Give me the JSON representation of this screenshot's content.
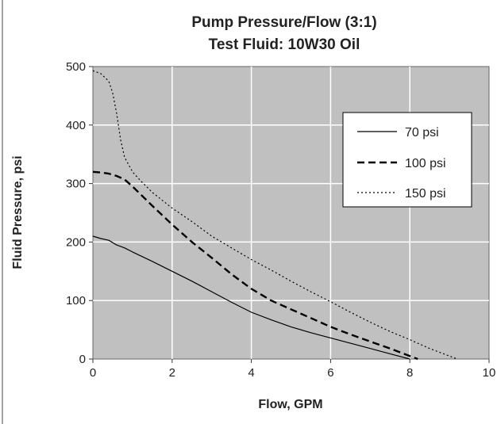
{
  "chart_data": {
    "type": "line",
    "title": [
      "Pump Pressure/Flow (3:1)",
      "Test Fluid: 10W30 Oil"
    ],
    "xlabel": "Flow, GPM",
    "ylabel": "Fluid Pressure, psi",
    "xlim": [
      0,
      10
    ],
    "ylim": [
      0,
      500
    ],
    "xticks": [
      0,
      2,
      4,
      6,
      8,
      10
    ],
    "yticks": [
      0,
      100,
      200,
      300,
      400,
      500
    ],
    "grid": true,
    "legend_position": "top-right",
    "colors": {
      "plot_background": "#c0c0c0",
      "grid": "#ffffff",
      "line": "#000000",
      "legend_bg": "#ffffff"
    },
    "series": [
      {
        "name": "70 psi",
        "style": "solid",
        "x": [
          0,
          0.2,
          0.4,
          0.6,
          0.8,
          1.0,
          1.5,
          2.0,
          2.5,
          3.0,
          3.5,
          4.0,
          4.5,
          5.0,
          5.5,
          6.0,
          6.5,
          7.0,
          7.5,
          8.0
        ],
        "y": [
          210,
          206,
          203,
          195,
          190,
          183,
          167,
          150,
          133,
          115,
          97,
          80,
          67,
          55,
          45,
          36,
          27,
          18,
          9,
          0
        ]
      },
      {
        "name": "100 psi",
        "style": "dashed",
        "x": [
          0,
          0.2,
          0.4,
          0.6,
          0.8,
          1.0,
          1.5,
          2.0,
          2.5,
          3.0,
          3.5,
          4.0,
          4.5,
          5.0,
          5.5,
          6.0,
          6.5,
          7.0,
          7.5,
          8.0,
          8.2
        ],
        "y": [
          320,
          319,
          317,
          313,
          307,
          295,
          262,
          230,
          200,
          173,
          145,
          120,
          100,
          85,
          70,
          55,
          42,
          30,
          18,
          5,
          0
        ]
      },
      {
        "name": "150 psi",
        "style": "dotted",
        "x": [
          0,
          0.2,
          0.4,
          0.5,
          0.6,
          0.7,
          0.8,
          1.0,
          1.2,
          1.5,
          2.0,
          2.5,
          3.0,
          3.5,
          4.0,
          4.5,
          5.0,
          5.5,
          6.0,
          6.5,
          7.0,
          7.5,
          8.0,
          8.5,
          9.0,
          9.2
        ],
        "y": [
          493,
          488,
          475,
          455,
          420,
          375,
          345,
          320,
          305,
          285,
          258,
          235,
          210,
          190,
          170,
          152,
          133,
          115,
          98,
          80,
          63,
          47,
          33,
          18,
          5,
          0
        ]
      }
    ]
  }
}
